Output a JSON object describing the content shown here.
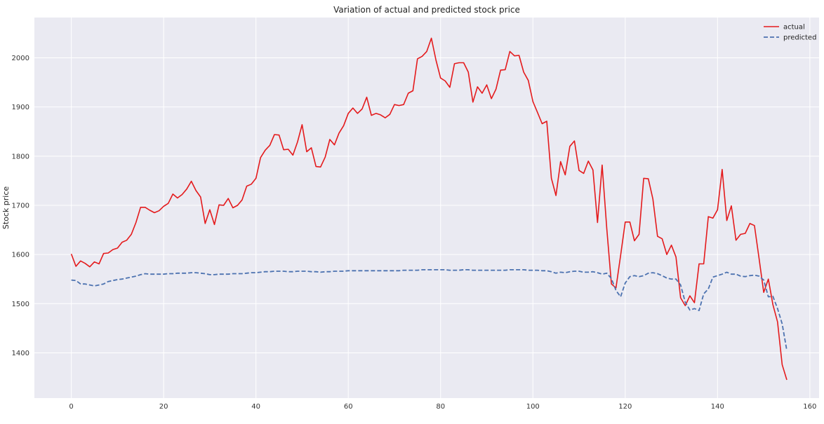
{
  "chart_data": {
    "type": "line",
    "title": "Variation of actual and predicted stock price",
    "xlabel": "",
    "ylabel": "Stock price",
    "xlim": [
      -8,
      162
    ],
    "ylim": [
      1308,
      2082
    ],
    "xticks": [
      0,
      20,
      40,
      60,
      80,
      100,
      120,
      140,
      160
    ],
    "yticks": [
      1400,
      1500,
      1600,
      1700,
      1800,
      1900,
      2000
    ],
    "grid": true,
    "legend_position": "top-right",
    "colors": {
      "background": "#eaeaf2",
      "grid": "#ffffff",
      "actual": "#e41a1c",
      "predicted": "#4c72b0"
    },
    "x": [
      0,
      1,
      2,
      3,
      4,
      5,
      6,
      7,
      8,
      9,
      10,
      11,
      12,
      13,
      14,
      15,
      16,
      17,
      18,
      19,
      20,
      21,
      22,
      23,
      24,
      25,
      26,
      27,
      28,
      29,
      30,
      31,
      32,
      33,
      34,
      35,
      36,
      37,
      38,
      39,
      40,
      41,
      42,
      43,
      44,
      45,
      46,
      47,
      48,
      49,
      50,
      51,
      52,
      53,
      54,
      55,
      56,
      57,
      58,
      59,
      60,
      61,
      62,
      63,
      64,
      65,
      66,
      67,
      68,
      69,
      70,
      71,
      72,
      73,
      74,
      75,
      76,
      77,
      78,
      79,
      80,
      81,
      82,
      83,
      84,
      85,
      86,
      87,
      88,
      89,
      90,
      91,
      92,
      93,
      94,
      95,
      96,
      97,
      98,
      99,
      100,
      101,
      102,
      103,
      104,
      105,
      106,
      107,
      108,
      109,
      110,
      111,
      112,
      113,
      114,
      115,
      116,
      117,
      118,
      119,
      120,
      121,
      122,
      123,
      124,
      125,
      126,
      127,
      128,
      129,
      130,
      131,
      132,
      133,
      134,
      135,
      136,
      137,
      138,
      139,
      140,
      141,
      142,
      143,
      144,
      145,
      146,
      147,
      148,
      149,
      150,
      151,
      152,
      153,
      154,
      155
    ],
    "series": [
      {
        "name": "actual",
        "style": "solid",
        "values": [
          1601,
          1576,
          1587,
          1582,
          1575,
          1585,
          1581,
          1602,
          1603,
          1610,
          1613,
          1625,
          1629,
          1641,
          1665,
          1696,
          1696,
          1690,
          1685,
          1689,
          1698,
          1704,
          1723,
          1715,
          1722,
          1733,
          1749,
          1730,
          1717,
          1663,
          1691,
          1661,
          1701,
          1700,
          1714,
          1695,
          1700,
          1711,
          1739,
          1743,
          1755,
          1797,
          1812,
          1822,
          1844,
          1843,
          1813,
          1814,
          1802,
          1829,
          1864,
          1809,
          1817,
          1779,
          1778,
          1798,
          1834,
          1823,
          1847,
          1862,
          1887,
          1898,
          1887,
          1896,
          1920,
          1883,
          1887,
          1884,
          1878,
          1885,
          1905,
          1903,
          1905,
          1928,
          1933,
          1998,
          2003,
          2013,
          2040,
          1995,
          1959,
          1953,
          1940,
          1988,
          1990,
          1990,
          1971,
          1910,
          1941,
          1928,
          1945,
          1917,
          1936,
          1975,
          1976,
          2013,
          2004,
          2005,
          1971,
          1954,
          1911,
          1889,
          1866,
          1871,
          1755,
          1720,
          1789,
          1762,
          1820,
          1831,
          1771,
          1765,
          1790,
          1772,
          1665,
          1782,
          1653,
          1540,
          1532,
          1598,
          1666,
          1666,
          1628,
          1641,
          1755,
          1754,
          1713,
          1637,
          1632,
          1600,
          1619,
          1595,
          1512,
          1496,
          1516,
          1502,
          1581,
          1581,
          1677,
          1674,
          1691,
          1773,
          1669,
          1699,
          1629,
          1641,
          1643,
          1663,
          1659,
          1592,
          1523,
          1550,
          1498,
          1463,
          1376,
          1345
        ]
      },
      {
        "name": "predicted",
        "style": "dashed",
        "values": [
          1548,
          1547,
          1540,
          1540,
          1538,
          1536,
          1538,
          1540,
          1545,
          1547,
          1549,
          1550,
          1552,
          1554,
          1556,
          1559,
          1561,
          1560,
          1560,
          1560,
          1560,
          1561,
          1561,
          1562,
          1562,
          1562,
          1563,
          1563,
          1562,
          1561,
          1559,
          1559,
          1560,
          1560,
          1560,
          1561,
          1561,
          1561,
          1562,
          1563,
          1563,
          1564,
          1565,
          1565,
          1566,
          1566,
          1566,
          1565,
          1565,
          1566,
          1566,
          1566,
          1565,
          1565,
          1564,
          1565,
          1565,
          1566,
          1566,
          1566,
          1567,
          1567,
          1567,
          1567,
          1567,
          1567,
          1567,
          1567,
          1567,
          1567,
          1567,
          1567,
          1568,
          1568,
          1568,
          1568,
          1569,
          1569,
          1569,
          1569,
          1569,
          1569,
          1568,
          1568,
          1568,
          1569,
          1569,
          1568,
          1568,
          1568,
          1568,
          1568,
          1568,
          1568,
          1568,
          1569,
          1569,
          1569,
          1569,
          1568,
          1568,
          1568,
          1567,
          1567,
          1565,
          1562,
          1564,
          1563,
          1565,
          1566,
          1566,
          1564,
          1564,
          1565,
          1563,
          1560,
          1562,
          1551,
          1527,
          1514,
          1542,
          1555,
          1557,
          1555,
          1557,
          1562,
          1563,
          1561,
          1557,
          1552,
          1550,
          1550,
          1538,
          1503,
          1487,
          1490,
          1486,
          1520,
          1530,
          1554,
          1557,
          1560,
          1564,
          1560,
          1560,
          1556,
          1555,
          1557,
          1558,
          1556,
          1548,
          1514,
          1515,
          1490,
          1459,
          1405
        ]
      }
    ]
  }
}
